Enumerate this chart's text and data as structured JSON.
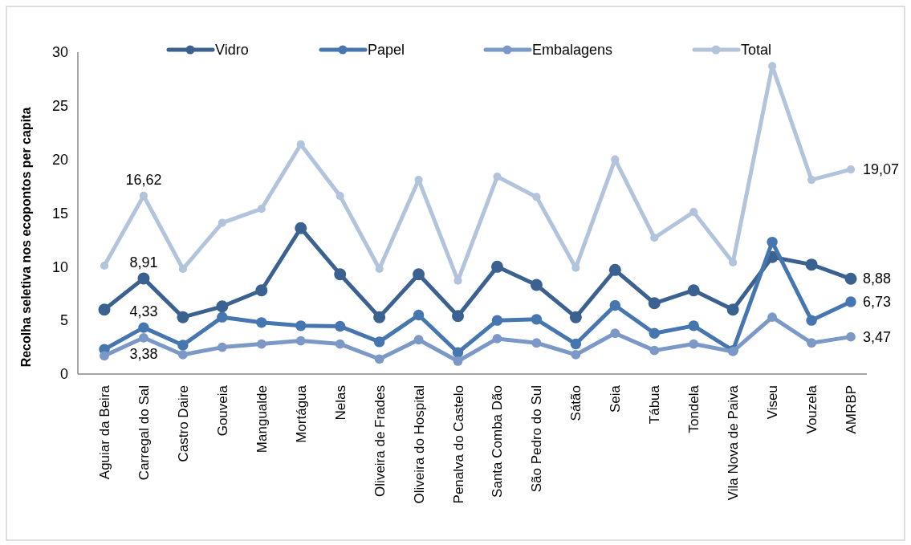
{
  "chart_data": {
    "type": "line",
    "ylabel": "Recolha seletiva nos ecopontos per capita",
    "categories": [
      "Aguiar da Beira",
      "Carregal do Sal",
      "Castro Daire",
      "Gouveia",
      "Mangualde",
      "Mortágua",
      "Nelas",
      "Oliveira de Frades",
      "Oliveira do Hospital",
      "Penalva do Castelo",
      "Santa Comba Dão",
      "São Pedro do Sul",
      "Sátão",
      "Seia",
      "Tábua",
      "Tondela",
      "Vila Nova de Paiva",
      "Viseu",
      "Vouzela",
      "AMRBP"
    ],
    "series": [
      {
        "name": "Vidro",
        "color": "#3b6190",
        "values": [
          6.0,
          8.91,
          5.3,
          6.3,
          7.8,
          13.6,
          9.3,
          5.3,
          9.3,
          5.4,
          10.0,
          8.3,
          5.3,
          9.7,
          6.6,
          7.8,
          6.0,
          10.9,
          10.2,
          8.88
        ],
        "value_labels": [
          null,
          "8,91",
          null,
          null,
          null,
          null,
          null,
          null,
          null,
          null,
          null,
          null,
          null,
          null,
          null,
          null,
          null,
          null,
          null,
          "8,88"
        ]
      },
      {
        "name": "Papel",
        "color": "#4676b0",
        "values": [
          2.3,
          4.33,
          2.7,
          5.3,
          4.8,
          4.5,
          4.45,
          3.0,
          5.5,
          2.0,
          5.0,
          5.1,
          2.8,
          6.4,
          3.8,
          4.5,
          2.2,
          12.3,
          5.0,
          6.73
        ],
        "value_labels": [
          null,
          "4,33",
          null,
          null,
          null,
          null,
          null,
          null,
          null,
          null,
          null,
          null,
          null,
          null,
          null,
          null,
          null,
          null,
          null,
          "6,73"
        ]
      },
      {
        "name": "Embalagens",
        "color": "#7b98c6",
        "values": [
          1.7,
          3.38,
          1.8,
          2.5,
          2.8,
          3.1,
          2.8,
          1.4,
          3.2,
          1.2,
          3.3,
          2.9,
          1.8,
          3.8,
          2.2,
          2.8,
          2.1,
          5.3,
          2.9,
          3.47
        ],
        "value_labels": [
          null,
          "3,38",
          null,
          null,
          null,
          null,
          null,
          null,
          null,
          null,
          null,
          null,
          null,
          null,
          null,
          null,
          null,
          null,
          null,
          "3,47"
        ]
      },
      {
        "name": "Total",
        "color": "#b2c3dc",
        "values": [
          10.1,
          16.62,
          9.8,
          14.1,
          15.4,
          21.4,
          16.6,
          9.8,
          18.1,
          8.7,
          18.4,
          16.5,
          9.9,
          20.0,
          12.7,
          15.1,
          10.4,
          28.7,
          18.1,
          19.07
        ],
        "value_labels": [
          null,
          "16,62",
          null,
          null,
          null,
          null,
          null,
          null,
          null,
          null,
          null,
          null,
          null,
          null,
          null,
          null,
          null,
          null,
          null,
          "19,07"
        ]
      }
    ],
    "ylim": [
      0,
      30
    ],
    "yticks": [
      0,
      5,
      10,
      15,
      20,
      25,
      30
    ],
    "grid": false,
    "legend": "top",
    "marker": "circle",
    "line_style": "solid"
  }
}
